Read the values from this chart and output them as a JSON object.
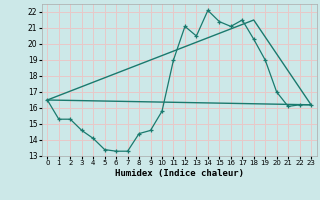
{
  "xlabel": "Humidex (Indice chaleur)",
  "bg_color": "#cce8e8",
  "line_color": "#1a7a6e",
  "grid_color": "#e8c8c8",
  "xlim": [
    -0.5,
    23.5
  ],
  "ylim": [
    13,
    22.5
  ],
  "yticks": [
    13,
    14,
    15,
    16,
    17,
    18,
    19,
    20,
    21,
    22
  ],
  "xticks": [
    0,
    1,
    2,
    3,
    4,
    5,
    6,
    7,
    8,
    9,
    10,
    11,
    12,
    13,
    14,
    15,
    16,
    17,
    18,
    19,
    20,
    21,
    22,
    23
  ],
  "line1_x": [
    0,
    23
  ],
  "line1_y": [
    16.5,
    16.2
  ],
  "line2_x": [
    0,
    18,
    23
  ],
  "line2_y": [
    16.5,
    21.5,
    16.2
  ],
  "line3_x": [
    0,
    1,
    2,
    3,
    4,
    5,
    6,
    7,
    8,
    9,
    10,
    11,
    12,
    13,
    14,
    15,
    16,
    17,
    18,
    19,
    20,
    21,
    22,
    23
  ],
  "line3_y": [
    16.5,
    15.3,
    15.3,
    14.6,
    14.1,
    13.4,
    13.3,
    13.3,
    14.4,
    14.6,
    15.8,
    19.0,
    21.1,
    20.5,
    22.1,
    21.4,
    21.1,
    21.5,
    20.3,
    19.0,
    17.0,
    16.1,
    16.2,
    16.2
  ]
}
